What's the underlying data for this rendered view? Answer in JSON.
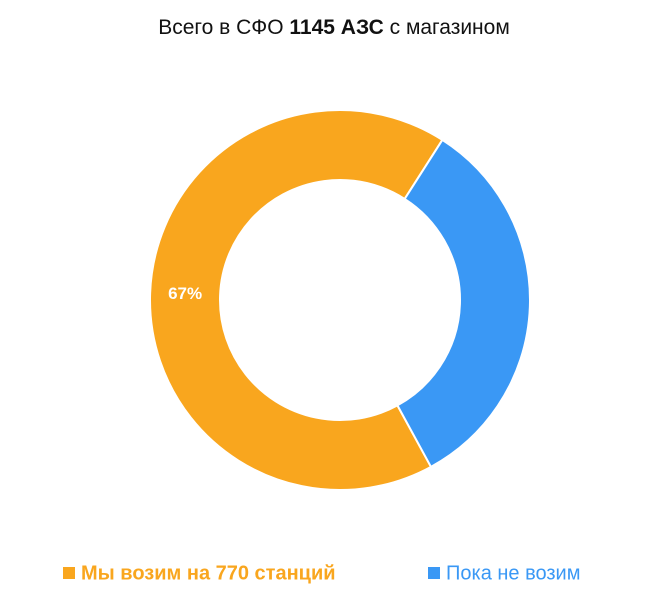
{
  "chart_data": {
    "type": "donut",
    "title": [
      "Всего в СФО",
      "1145 АЗС",
      "с магазином"
    ],
    "categories": [
      "Мы возим на 770 станций",
      "Пока не возим"
    ],
    "values": [
      67,
      33
    ],
    "value_labels": [
      "67%",
      null
    ],
    "colors": [
      "#f9a61e",
      "#3a98f5"
    ]
  }
}
